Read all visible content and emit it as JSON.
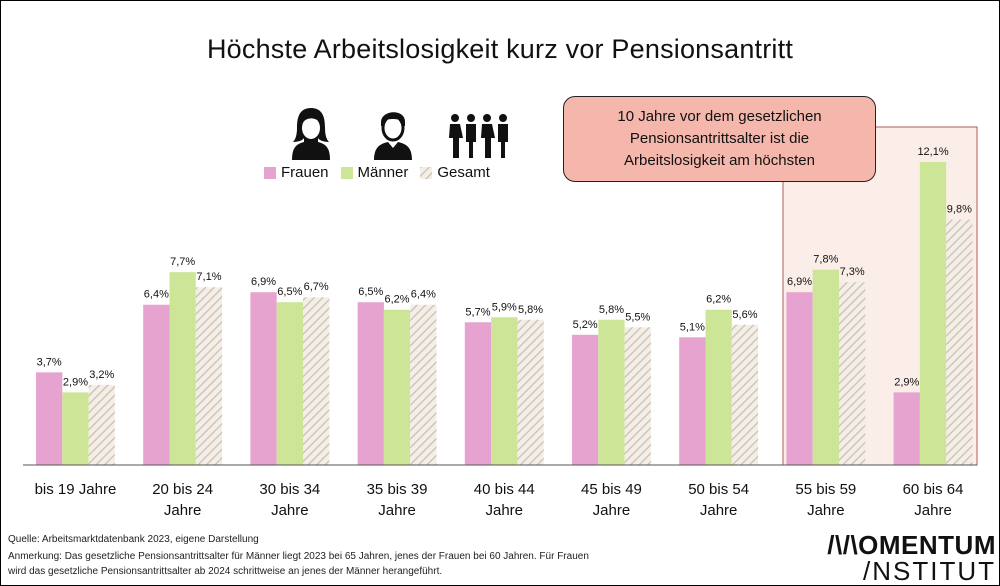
{
  "title": "Höchste Arbeitslosigkeit kurz vor Pensionsantritt",
  "callout": "10 Jahre vor dem gesetzlichen Pensionsantrittsalter ist die Arbeitslosigkeit am höchsten",
  "legend": [
    {
      "label": "Frauen",
      "color": "#e6a3cf"
    },
    {
      "label": "Männer",
      "color": "#cce596"
    },
    {
      "label": "Gesamt",
      "color": "#d9cdbf"
    }
  ],
  "icons": [
    "woman-icon",
    "man-icon",
    "group-icon"
  ],
  "chart_data": {
    "type": "bar",
    "categories": [
      "bis 19 Jahre",
      "20 bis 24 Jahre",
      "30 bis 34 Jahre",
      "35 bis 39 Jahre",
      "40 bis 44 Jahre",
      "45 bis 49 Jahre",
      "50 bis 54 Jahre",
      "55 bis 59 Jahre",
      "60 bis 64 Jahre"
    ],
    "category_lines": [
      [
        "bis 19 Jahre"
      ],
      [
        "20 bis 24",
        "Jahre"
      ],
      [
        "30 bis 34",
        "Jahre"
      ],
      [
        "35 bis 39",
        "Jahre"
      ],
      [
        "40 bis 44",
        "Jahre"
      ],
      [
        "45 bis 49",
        "Jahre"
      ],
      [
        "50 bis 54",
        "Jahre"
      ],
      [
        "55 bis 59",
        "Jahre"
      ],
      [
        "60 bis 64",
        "Jahre"
      ]
    ],
    "series": [
      {
        "name": "Frauen",
        "values": [
          3.7,
          6.4,
          6.9,
          6.5,
          5.7,
          5.2,
          5.1,
          6.9,
          2.9
        ],
        "labels": [
          "3,7%",
          "6,4%",
          "6,9%",
          "6,5%",
          "5,7%",
          "5,2%",
          "5,1%",
          "6,9%",
          "2,9%"
        ]
      },
      {
        "name": "Männer",
        "values": [
          2.9,
          7.7,
          6.5,
          6.2,
          5.9,
          5.8,
          6.2,
          7.8,
          12.1
        ],
        "labels": [
          "2,9%",
          "7,7%",
          "6,5%",
          "6,2%",
          "5,9%",
          "5,8%",
          "6,2%",
          "7,8%",
          "12,1%"
        ]
      },
      {
        "name": "Gesamt",
        "values": [
          3.2,
          7.1,
          6.7,
          6.4,
          5.8,
          5.5,
          5.6,
          7.3,
          9.8
        ],
        "labels": [
          "3,2%",
          "7,1%",
          "6,7%",
          "6,4%",
          "5,8%",
          "5,5%",
          "5,6%",
          "7,3%",
          "9,8%"
        ]
      }
    ],
    "highlighted_categories": [
      "55 bis 59 Jahre",
      "60 bis 64 Jahre"
    ],
    "ylim": [
      0,
      12.1
    ],
    "grid": false
  },
  "footer": {
    "source": "Quelle: Arbeitsmarktdatenbank 2023, eigene Darstellung",
    "note1": "Anmerkung: Das gesetzliche Pensionsantrittsalter für Männer liegt 2023 bei 65 Jahren, jenes der Frauen bei 60 Jahren. Für Frauen",
    "note2": "wird das gesetzliche Pensionsantrittsalter ab 2024 schrittweise an jenes der Männer herangeführt."
  },
  "logo": {
    "line1": "/\\/\\OMENTUM",
    "line2": "/NSTITUT"
  }
}
